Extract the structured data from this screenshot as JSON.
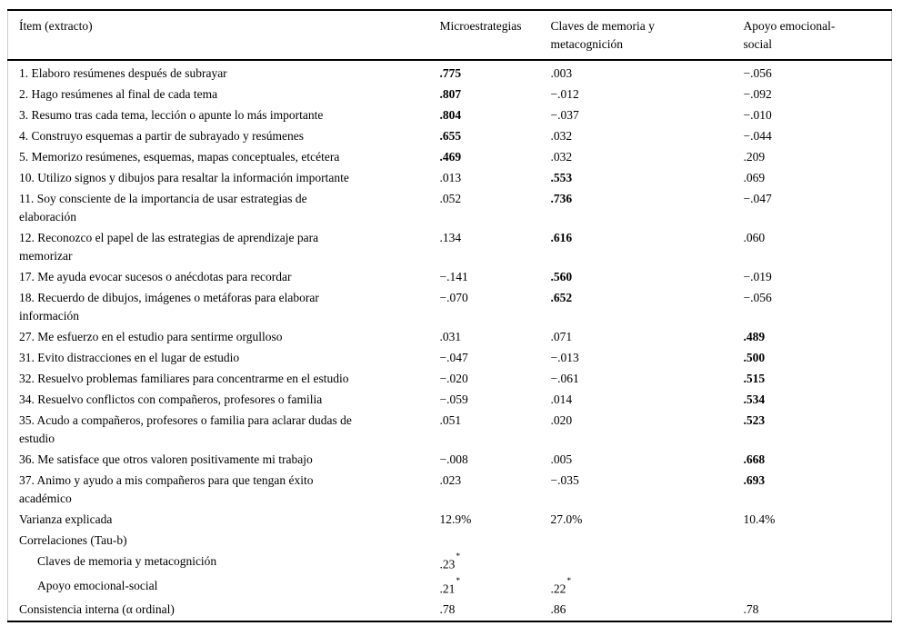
{
  "table": {
    "header": {
      "item": "Ítem (extracto)",
      "micro": "Microestrategias",
      "claves": "Claves de memoria y\nmetacognición",
      "apoyo": "Apoyo emocional-\nsocial"
    },
    "rows": [
      {
        "label": "1. Elaboro resúmenes después de subrayar",
        "cells": [
          {
            "text": ".775",
            "bold": true
          },
          {
            "text": ".003"
          },
          {
            "text": "−.056"
          }
        ]
      },
      {
        "label": "2. Hago resúmenes al final de cada tema",
        "cells": [
          {
            "text": ".807",
            "bold": true
          },
          {
            "text": "−.012"
          },
          {
            "text": "−.092"
          }
        ]
      },
      {
        "label": "3. Resumo tras cada tema, lección o apunte lo más importante",
        "cells": [
          {
            "text": ".804",
            "bold": true
          },
          {
            "text": "−.037"
          },
          {
            "text": "−.010"
          }
        ]
      },
      {
        "label": "4. Construyo esquemas a partir de subrayado y resúmenes",
        "cells": [
          {
            "text": ".655",
            "bold": true
          },
          {
            "text": ".032"
          },
          {
            "text": "−.044"
          }
        ]
      },
      {
        "label": "5. Memorizo resúmenes, esquemas, mapas conceptuales, etcétera",
        "cells": [
          {
            "text": ".469",
            "bold": true
          },
          {
            "text": ".032"
          },
          {
            "text": ".209"
          }
        ]
      },
      {
        "label": "10. Utilizo signos y dibujos para resaltar la información importante",
        "cells": [
          {
            "text": ".013"
          },
          {
            "text": ".553",
            "bold": true
          },
          {
            "text": ".069"
          }
        ]
      },
      {
        "label": "11. Soy consciente de la importancia de usar estrategias de\nelaboración",
        "cells": [
          {
            "text": ".052"
          },
          {
            "text": ".736",
            "bold": true
          },
          {
            "text": "−.047"
          }
        ]
      },
      {
        "label": "12. Reconozco el papel de las estrategias de aprendizaje para\nmemorizar",
        "cells": [
          {
            "text": ".134"
          },
          {
            "text": ".616",
            "bold": true
          },
          {
            "text": ".060"
          }
        ]
      },
      {
        "label": "17. Me ayuda evocar sucesos o anécdotas para recordar",
        "cells": [
          {
            "text": "−.141"
          },
          {
            "text": ".560",
            "bold": true
          },
          {
            "text": "−.019"
          }
        ]
      },
      {
        "label": "18. Recuerdo de dibujos, imágenes o metáforas para elaborar\ninformación",
        "cells": [
          {
            "text": "−.070"
          },
          {
            "text": ".652",
            "bold": true
          },
          {
            "text": "−.056"
          }
        ]
      },
      {
        "label": "27. Me esfuerzo en el estudio para sentirme orgulloso",
        "cells": [
          {
            "text": ".031"
          },
          {
            "text": ".071"
          },
          {
            "text": ".489",
            "bold": true
          }
        ]
      },
      {
        "label": "31. Evito distracciones en el lugar de estudio",
        "cells": [
          {
            "text": "−.047"
          },
          {
            "text": "−.013"
          },
          {
            "text": ".500",
            "bold": true
          }
        ]
      },
      {
        "label": "32. Resuelvo problemas familiares para concentrarme en el estudio",
        "cells": [
          {
            "text": "−.020"
          },
          {
            "text": "−.061"
          },
          {
            "text": ".515",
            "bold": true
          }
        ]
      },
      {
        "label": "34. Resuelvo conflictos con compañeros, profesores o familia",
        "cells": [
          {
            "text": "−.059"
          },
          {
            "text": ".014"
          },
          {
            "text": ".534",
            "bold": true
          }
        ]
      },
      {
        "label": "35. Acudo a compañeros, profesores o familia para aclarar dudas de\nestudio",
        "cells": [
          {
            "text": ".051"
          },
          {
            "text": ".020"
          },
          {
            "text": ".523",
            "bold": true
          }
        ]
      },
      {
        "label": "36. Me satisface que otros valoren positivamente mi trabajo",
        "cells": [
          {
            "text": "−.008"
          },
          {
            "text": ".005"
          },
          {
            "text": ".668",
            "bold": true
          }
        ]
      },
      {
        "label": "37. Animo y ayudo a mis compañeros para que tengan éxito\nacadémico",
        "cells": [
          {
            "text": ".023"
          },
          {
            "text": "−.035"
          },
          {
            "text": ".693",
            "bold": true
          }
        ]
      },
      {
        "label": "Varianza explicada",
        "cells": [
          {
            "text": "12.9%"
          },
          {
            "text": "27.0%"
          },
          {
            "text": "10.4%"
          }
        ]
      },
      {
        "label": "Correlaciones (Tau-b)",
        "cells": [
          {
            "text": ""
          },
          {
            "text": ""
          },
          {
            "text": ""
          }
        ]
      },
      {
        "label": "Claves de memoria y metacognición",
        "indent": true,
        "cells": [
          {
            "text": ".23",
            "sup": "*"
          },
          {
            "text": ""
          },
          {
            "text": ""
          }
        ]
      },
      {
        "label": "Apoyo emocional-social",
        "indent": true,
        "cells": [
          {
            "text": ".21",
            "sup": "*"
          },
          {
            "text": ".22",
            "sup": "*"
          },
          {
            "text": ""
          }
        ]
      },
      {
        "label": "Consistencia interna (α ordinal)",
        "cells": [
          {
            "text": ".78"
          },
          {
            "text": ".86"
          },
          {
            "text": ".78"
          }
        ]
      }
    ]
  }
}
